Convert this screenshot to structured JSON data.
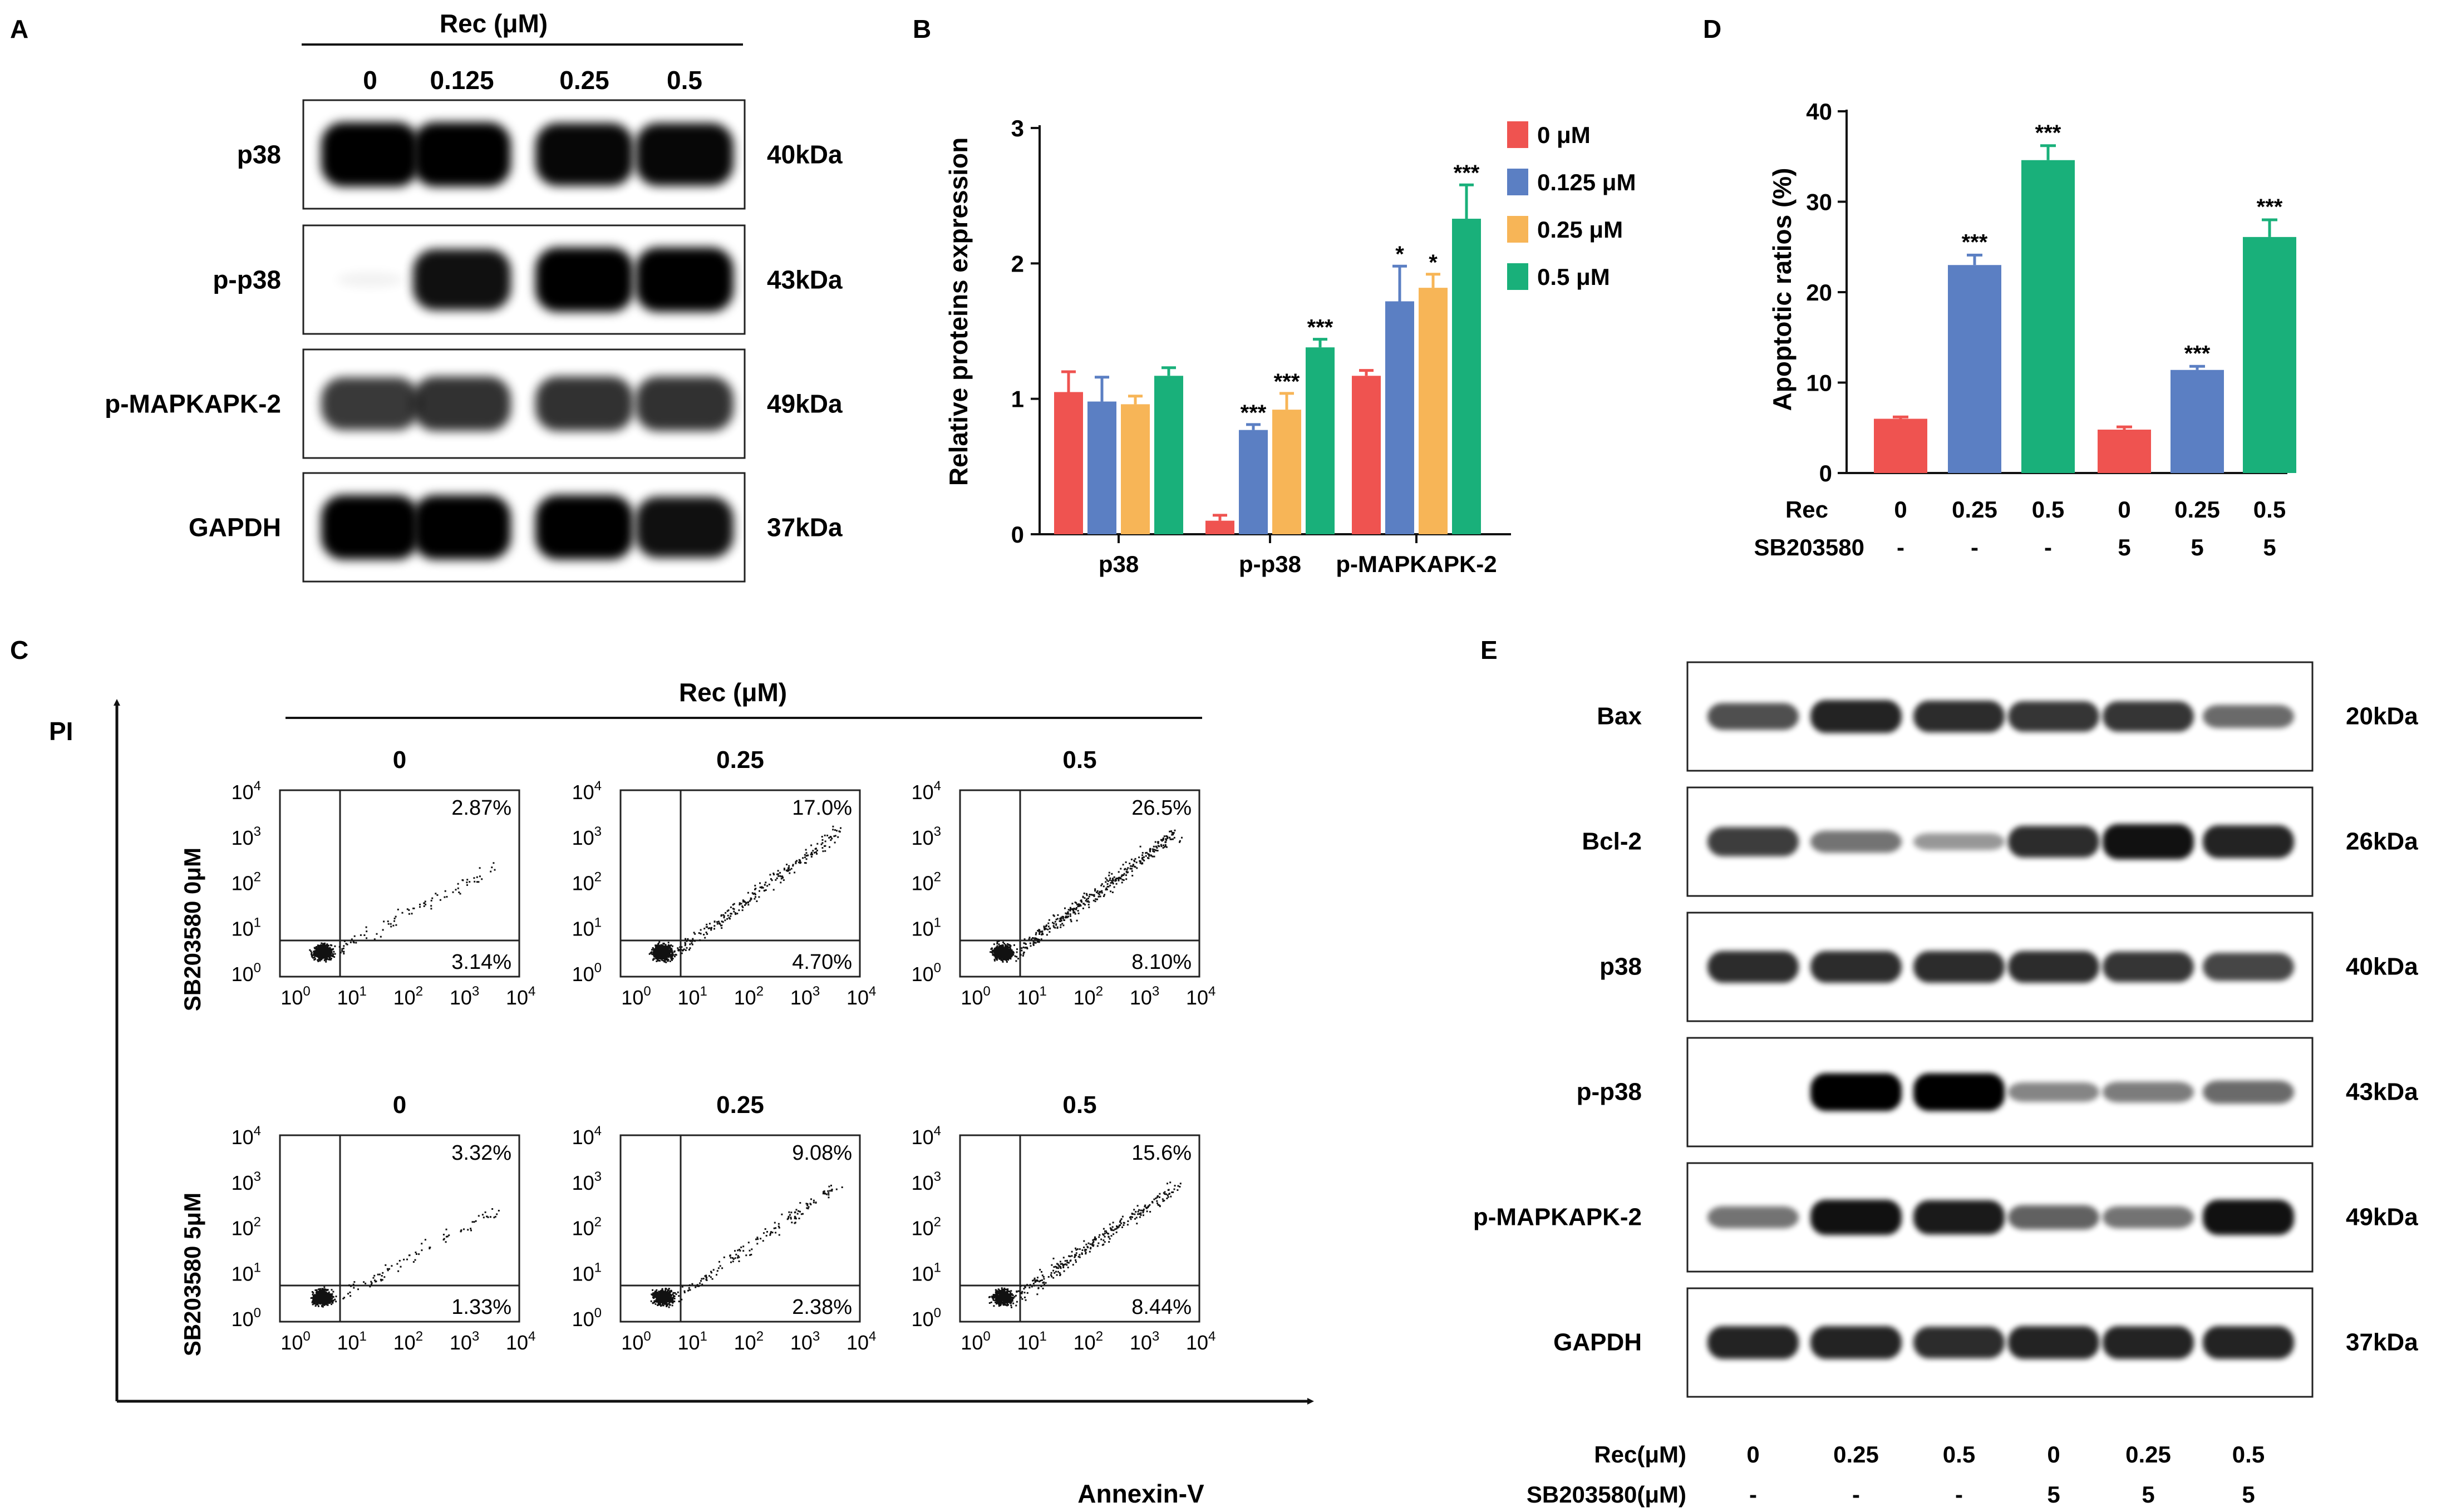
{
  "colors": {
    "c0": "#ef5350",
    "c1": "#5b7fc3",
    "c2": "#f7b557",
    "c3": "#19b07a",
    "text": "#111111"
  },
  "panelA": {
    "letter": "A",
    "header": "Rec (μM)",
    "doses": [
      "0",
      "0.125",
      "0.25",
      "0.5"
    ],
    "rows": [
      {
        "label": "p38",
        "kda": "40kDa"
      },
      {
        "label": "p-p38",
        "kda": "43kDa"
      },
      {
        "label": "p-MAPKAPK-2",
        "kda": "49kDa"
      },
      {
        "label": "GAPDH",
        "kda": "37kDa"
      }
    ],
    "bands": [
      [
        1.0,
        1.0,
        0.95,
        0.95
      ],
      [
        0.05,
        0.9,
        1.0,
        1.0
      ],
      [
        0.65,
        0.7,
        0.7,
        0.7
      ],
      [
        1.0,
        1.0,
        1.0,
        0.9
      ]
    ]
  },
  "chart_data": [
    {
      "id": "B",
      "letter": "B",
      "type": "bar",
      "ylabel": "Relative proteins expression",
      "ylim": [
        0,
        3
      ],
      "yticks": [
        "0",
        "1",
        "2",
        "3"
      ],
      "categories": [
        "p38",
        "p-p38",
        "p-MAPKAPK-2"
      ],
      "series": [
        {
          "name": "0 μM",
          "color": "#ef5350",
          "values": [
            1.05,
            0.1,
            1.17
          ],
          "errors": [
            0.15,
            0.04,
            0.04
          ],
          "sig": [
            "",
            "",
            ""
          ]
        },
        {
          "name": "0.125 μM",
          "color": "#5b7fc3",
          "values": [
            0.98,
            0.77,
            1.72
          ],
          "errors": [
            0.18,
            0.04,
            0.26
          ],
          "sig": [
            "",
            "***",
            "*"
          ]
        },
        {
          "name": "0.25 μM",
          "color": "#f7b557",
          "values": [
            0.96,
            0.92,
            1.82
          ],
          "errors": [
            0.06,
            0.12,
            0.1
          ],
          "sig": [
            "",
            "***",
            "*"
          ]
        },
        {
          "name": "0.5 μM",
          "color": "#19b07a",
          "values": [
            1.17,
            1.38,
            2.33
          ],
          "errors": [
            0.06,
            0.06,
            0.25
          ],
          "sig": [
            "",
            "***",
            "***"
          ]
        }
      ],
      "legend": "top-right"
    },
    {
      "id": "D",
      "letter": "D",
      "type": "bar",
      "ylabel": "Apoptotic ratios (%)",
      "ylim": [
        0,
        40
      ],
      "yticks": [
        "0",
        "10",
        "20",
        "30",
        "40"
      ],
      "x_row1_label": "Rec",
      "x_row2_label": "SB203580",
      "rec": [
        "0",
        "0.25",
        "0.5",
        "0",
        "0.25",
        "0.5"
      ],
      "sb": [
        "-",
        "-",
        "-",
        "5",
        "5",
        "5"
      ],
      "values": [
        6.0,
        23.0,
        34.6,
        4.8,
        11.4,
        26.1
      ],
      "errors": [
        0.2,
        1.1,
        1.6,
        0.3,
        0.4,
        1.9
      ],
      "sig": [
        "",
        "***",
        "***",
        "",
        "***",
        "***"
      ],
      "colors": [
        "#ef5350",
        "#5b7fc3",
        "#19b07a",
        "#ef5350",
        "#5b7fc3",
        "#19b07a"
      ]
    }
  ],
  "panelC": {
    "letter": "C",
    "y_axis": "PI",
    "x_axis": "Annexin-V",
    "header": "Rec (μM)",
    "row_labels": [
      "SB203580 0μM",
      "SB203580 5μM"
    ],
    "col_labels": [
      "0",
      "0.25",
      "0.5"
    ],
    "tick_base": "10",
    "tick_exps": [
      "0",
      "1",
      "2",
      "3",
      "4"
    ],
    "plots": [
      {
        "ur": "2.87%",
        "lr": "3.14%",
        "apop": 0.03,
        "late": 0.2
      },
      {
        "ur": "17.0%",
        "lr": "4.70%",
        "apop": 0.2,
        "late": 0.75
      },
      {
        "ur": "26.5%",
        "lr": "8.10%",
        "apop": 0.35,
        "late": 0.75
      },
      {
        "ur": "3.32%",
        "lr": "1.33%",
        "apop": 0.03,
        "late": 0.2
      },
      {
        "ur": "9.08%",
        "lr": "2.38%",
        "apop": 0.1,
        "late": 0.6
      },
      {
        "ur": "15.6%",
        "lr": "8.44%",
        "apop": 0.25,
        "late": 0.6
      }
    ]
  },
  "panelE": {
    "letter": "E",
    "rows": [
      {
        "label": "Bax",
        "kda": "20kDa"
      },
      {
        "label": "Bcl-2",
        "kda": "26kDa"
      },
      {
        "label": "p38",
        "kda": "40kDa"
      },
      {
        "label": "p-p38",
        "kda": "43kDa"
      },
      {
        "label": "p-MAPKAPK-2",
        "kda": "49kDa"
      },
      {
        "label": "GAPDH",
        "kda": "37kDa"
      }
    ],
    "bands": [
      [
        0.55,
        0.8,
        0.75,
        0.7,
        0.7,
        0.4
      ],
      [
        0.65,
        0.35,
        0.15,
        0.75,
        0.9,
        0.8
      ],
      [
        0.75,
        0.75,
        0.75,
        0.75,
        0.7,
        0.6
      ],
      [
        0.0,
        1.0,
        1.0,
        0.25,
        0.3,
        0.4
      ],
      [
        0.35,
        0.9,
        0.85,
        0.45,
        0.35,
        0.9
      ],
      [
        0.8,
        0.8,
        0.75,
        0.8,
        0.8,
        0.8
      ]
    ],
    "x_row1_label": "Rec(μM)",
    "x_row2_label": "SB203580(μM)",
    "rec": [
      "0",
      "0.25",
      "0.5",
      "0",
      "0.25",
      "0.5"
    ],
    "sb": [
      "-",
      "-",
      "-",
      "5",
      "5",
      "5"
    ]
  }
}
